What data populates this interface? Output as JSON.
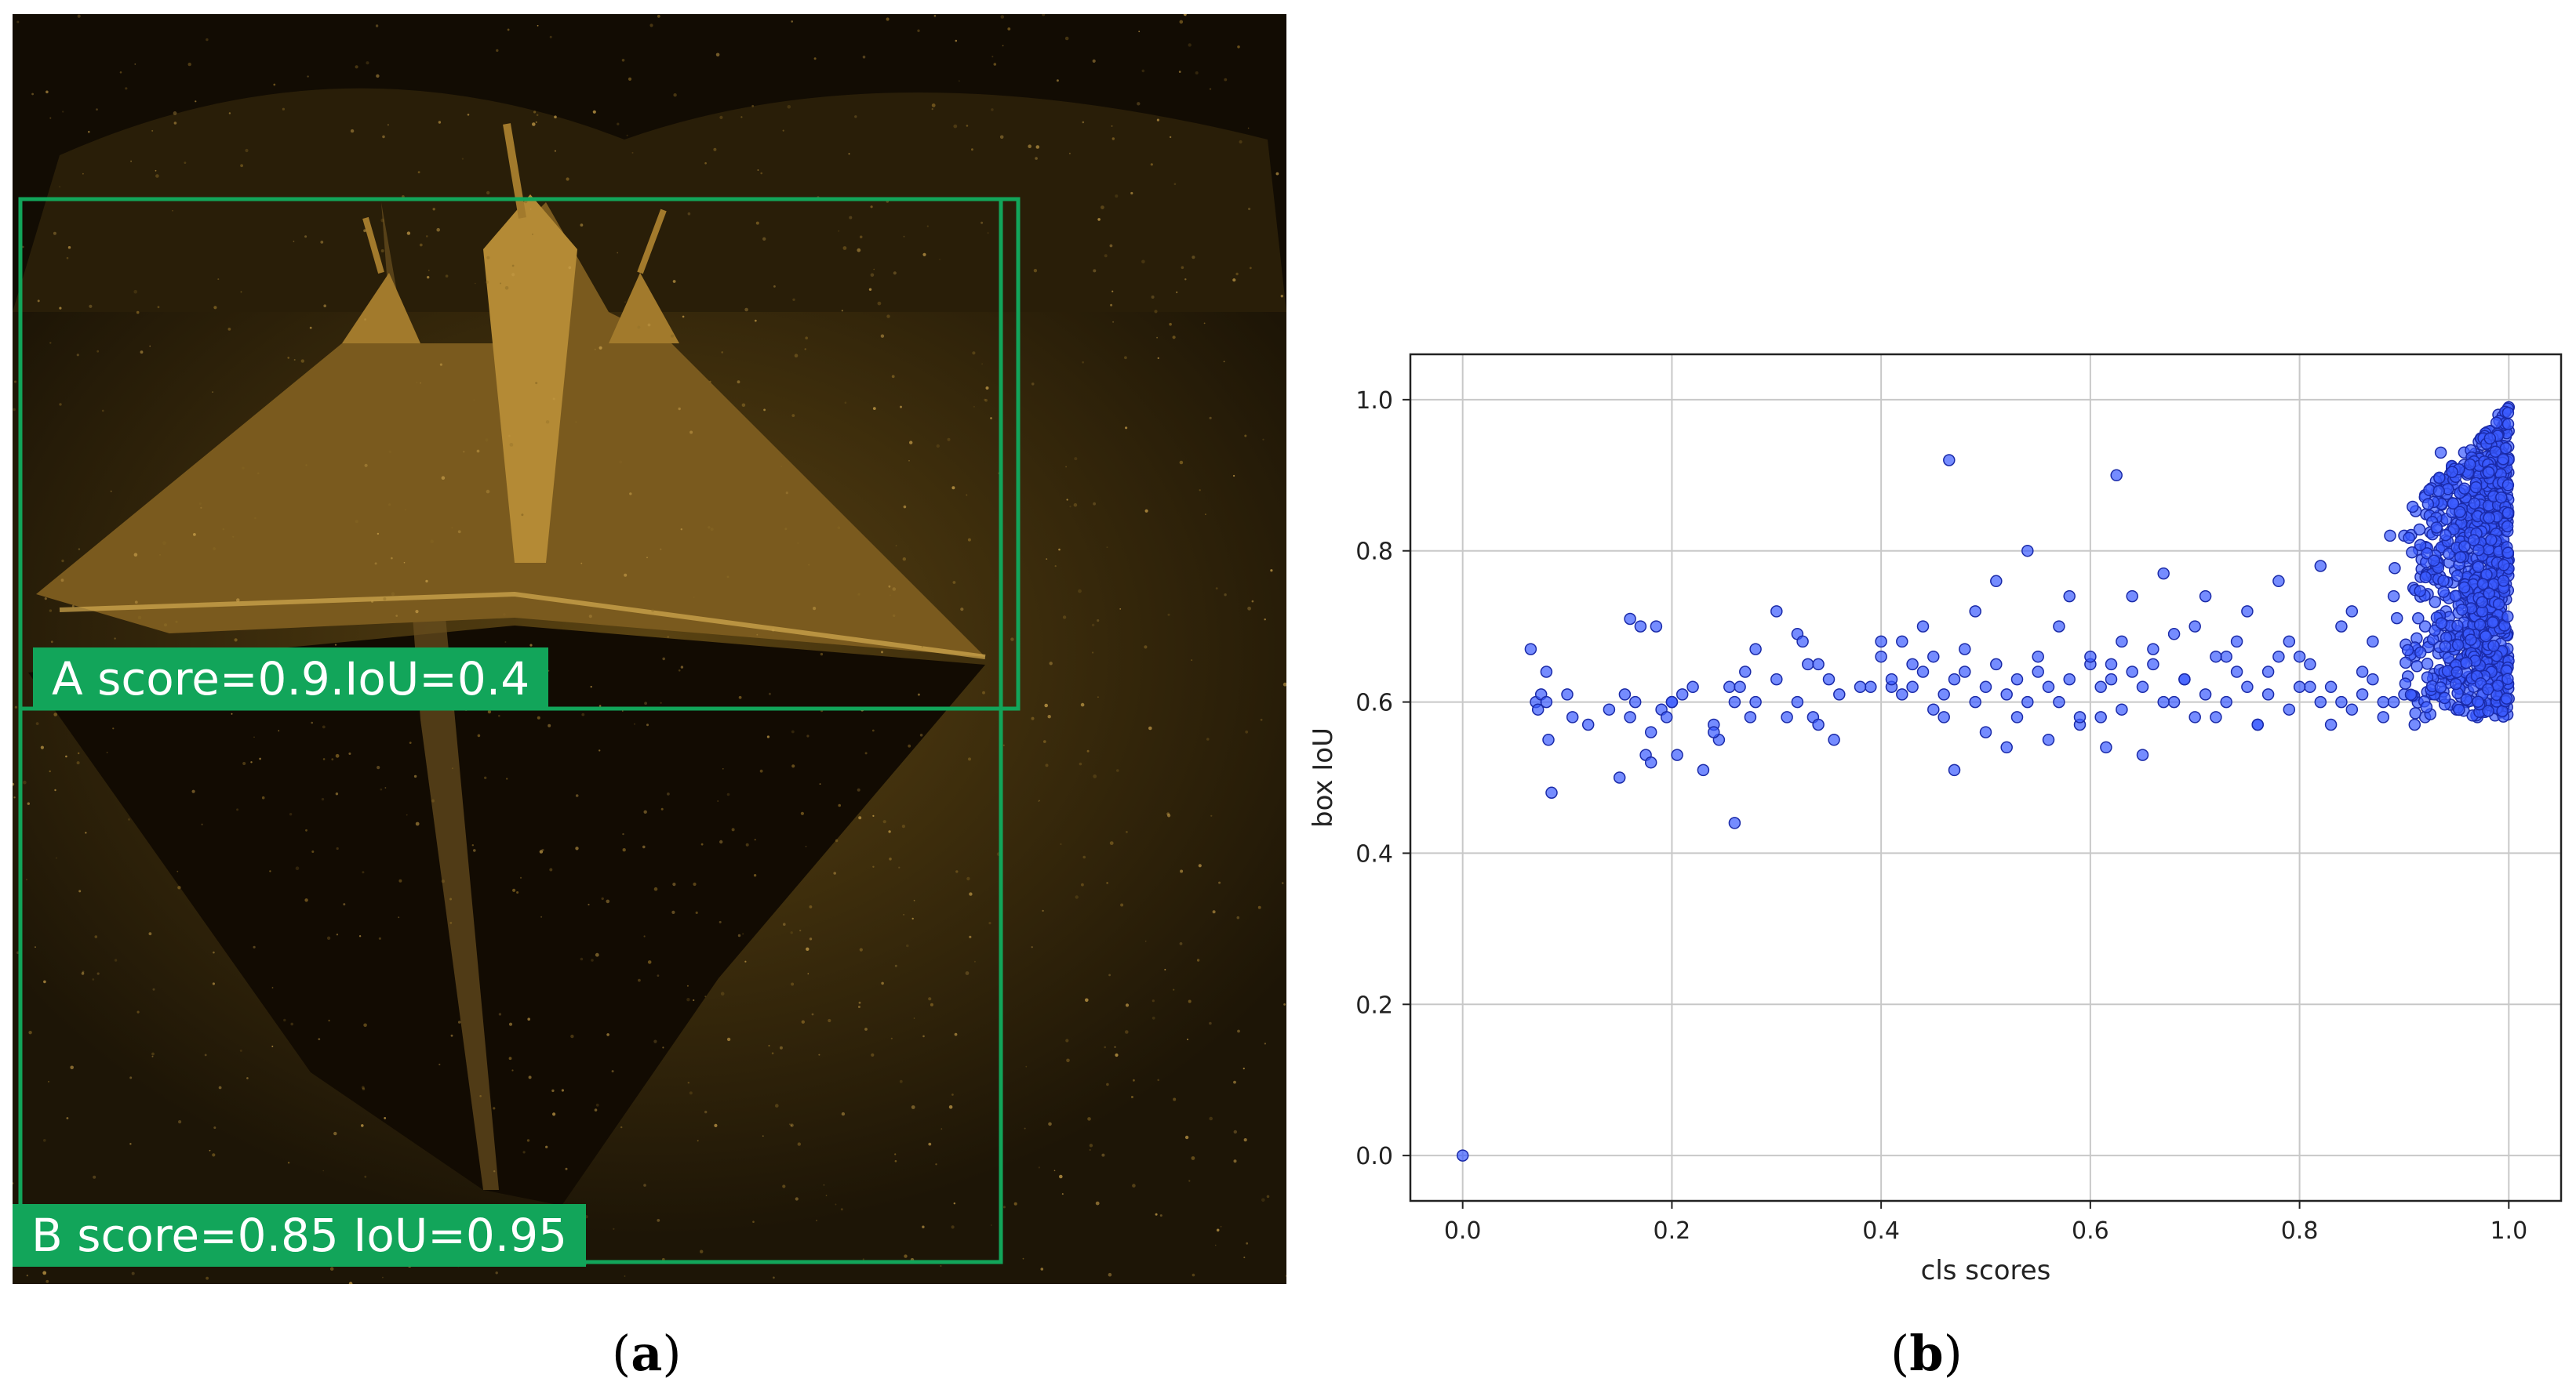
{
  "panel_a": {
    "detections": [
      {
        "label": "A score=0.9.IoU=0.4",
        "color": "#12a55a"
      },
      {
        "label": "B score=0.85 IoU=0.95",
        "color": "#12a55a"
      }
    ],
    "caption": {
      "open": "(",
      "letter": "a",
      "close": ")"
    }
  },
  "panel_b": {
    "caption": {
      "open": "(",
      "letter": "b",
      "close": ")"
    }
  },
  "chart_data": {
    "type": "scatter",
    "xlabel": "cls scores",
    "ylabel": "box IoU",
    "xlim": [
      -0.05,
      1.05
    ],
    "ylim": [
      -0.06,
      1.06
    ],
    "xticks": [
      0.0,
      0.2,
      0.4,
      0.6,
      0.8,
      1.0
    ],
    "yticks": [
      0.0,
      0.2,
      0.4,
      0.6,
      0.8,
      1.0
    ],
    "xtick_labels": [
      "0.0",
      "0.2",
      "0.4",
      "0.6",
      "0.8",
      "1.0"
    ],
    "ytick_labels": [
      "0.0",
      "0.2",
      "0.4",
      "0.6",
      "0.8",
      "1.0"
    ],
    "grid": true,
    "marker_color": "#3b5bff",
    "marker_edge": "#1a2aa8",
    "series": [
      {
        "x": [
          0.0,
          0.065,
          0.07,
          0.072,
          0.075,
          0.08,
          0.082,
          0.085,
          0.105,
          0.15,
          0.155,
          0.16,
          0.165,
          0.17,
          0.175,
          0.18,
          0.185,
          0.19,
          0.195,
          0.2,
          0.205,
          0.21,
          0.23,
          0.24,
          0.245,
          0.255,
          0.26,
          0.265,
          0.27,
          0.275,
          0.28,
          0.3,
          0.31,
          0.32,
          0.325,
          0.33,
          0.335,
          0.34,
          0.35,
          0.355,
          0.39,
          0.4,
          0.41,
          0.42,
          0.43,
          0.44,
          0.45,
          0.46,
          0.465,
          0.47,
          0.48,
          0.49,
          0.5,
          0.51,
          0.52,
          0.53,
          0.54,
          0.55,
          0.56,
          0.57,
          0.58,
          0.59,
          0.6,
          0.61,
          0.615,
          0.62,
          0.625,
          0.63,
          0.64,
          0.65,
          0.66,
          0.67,
          0.68,
          0.69,
          0.7,
          0.71,
          0.72,
          0.73,
          0.74,
          0.75,
          0.76,
          0.77,
          0.78,
          0.79,
          0.8,
          0.81,
          0.82,
          0.83,
          0.84,
          0.85,
          0.86,
          0.87,
          0.88,
          0.89,
          0.9,
          0.91,
          0.92,
          0.93,
          0.935,
          0.94,
          0.945,
          0.95,
          0.955,
          0.96,
          0.965,
          0.97,
          0.975,
          0.98,
          0.985,
          0.99,
          0.995,
          1.0,
          0.99,
          0.98,
          0.97,
          0.96,
          0.95,
          0.94,
          0.93,
          0.92,
          0.91,
          0.9,
          0.89,
          0.88,
          0.87,
          0.86,
          0.85,
          0.84,
          0.83,
          0.82,
          0.81,
          0.8,
          0.79,
          0.78,
          0.77,
          0.76,
          0.75,
          0.74,
          0.73,
          0.72,
          0.71,
          0.7,
          0.69,
          0.68,
          0.67,
          0.66,
          0.65,
          0.64,
          0.63,
          0.62,
          0.61,
          0.6,
          0.59,
          0.58,
          0.57,
          0.56,
          0.55,
          0.54,
          0.53,
          0.52,
          0.51,
          0.5,
          0.49,
          0.48,
          0.47,
          0.46,
          0.45,
          0.44,
          0.43,
          0.42,
          0.41,
          0.4,
          0.38,
          0.36,
          0.34,
          0.32,
          0.3,
          0.28,
          0.26,
          0.24,
          0.22,
          0.2,
          0.18,
          0.16,
          0.14,
          0.12,
          0.1,
          0.08
        ],
        "y": [
          0.0,
          0.67,
          0.6,
          0.59,
          0.61,
          0.64,
          0.55,
          0.48,
          0.58,
          0.5,
          0.61,
          0.71,
          0.6,
          0.7,
          0.53,
          0.52,
          0.7,
          0.59,
          0.58,
          0.6,
          0.53,
          0.61,
          0.51,
          0.57,
          0.55,
          0.62,
          0.44,
          0.62,
          0.64,
          0.58,
          0.6,
          0.72,
          0.58,
          0.69,
          0.68,
          0.65,
          0.58,
          0.57,
          0.63,
          0.55,
          0.62,
          0.68,
          0.62,
          0.61,
          0.65,
          0.7,
          0.66,
          0.58,
          0.92,
          0.51,
          0.64,
          0.72,
          0.56,
          0.76,
          0.54,
          0.58,
          0.8,
          0.66,
          0.55,
          0.7,
          0.74,
          0.57,
          0.65,
          0.58,
          0.54,
          0.63,
          0.9,
          0.68,
          0.74,
          0.53,
          0.65,
          0.77,
          0.6,
          0.63,
          0.7,
          0.74,
          0.58,
          0.66,
          0.68,
          0.72,
          0.57,
          0.64,
          0.76,
          0.68,
          0.66,
          0.62,
          0.78,
          0.57,
          0.7,
          0.72,
          0.64,
          0.68,
          0.6,
          0.74,
          0.82,
          0.66,
          0.7,
          0.78,
          0.93,
          0.72,
          0.64,
          0.84,
          0.68,
          0.76,
          0.72,
          0.88,
          0.81,
          0.94,
          0.7,
          0.98,
          0.85,
          0.99,
          0.6,
          0.62,
          0.58,
          0.6,
          0.59,
          0.63,
          0.61,
          0.58,
          0.57,
          0.61,
          0.6,
          0.58,
          0.63,
          0.61,
          0.59,
          0.6,
          0.62,
          0.6,
          0.65,
          0.62,
          0.59,
          0.66,
          0.61,
          0.57,
          0.62,
          0.64,
          0.6,
          0.66,
          0.61,
          0.58,
          0.63,
          0.69,
          0.6,
          0.67,
          0.62,
          0.64,
          0.59,
          0.65,
          0.62,
          0.66,
          0.58,
          0.63,
          0.6,
          0.62,
          0.64,
          0.6,
          0.63,
          0.61,
          0.65,
          0.62,
          0.6,
          0.67,
          0.63,
          0.61,
          0.59,
          0.64,
          0.62,
          0.68,
          0.63,
          0.66,
          0.62,
          0.61,
          0.65,
          0.6,
          0.63,
          0.67,
          0.6,
          0.56,
          0.62,
          0.6,
          0.56,
          0.58,
          0.59,
          0.57,
          0.61,
          0.6
        ]
      }
    ],
    "dense_cluster": {
      "x_range": [
        0.88,
        1.0
      ],
      "y_range": [
        0.58,
        0.99
      ]
    }
  }
}
